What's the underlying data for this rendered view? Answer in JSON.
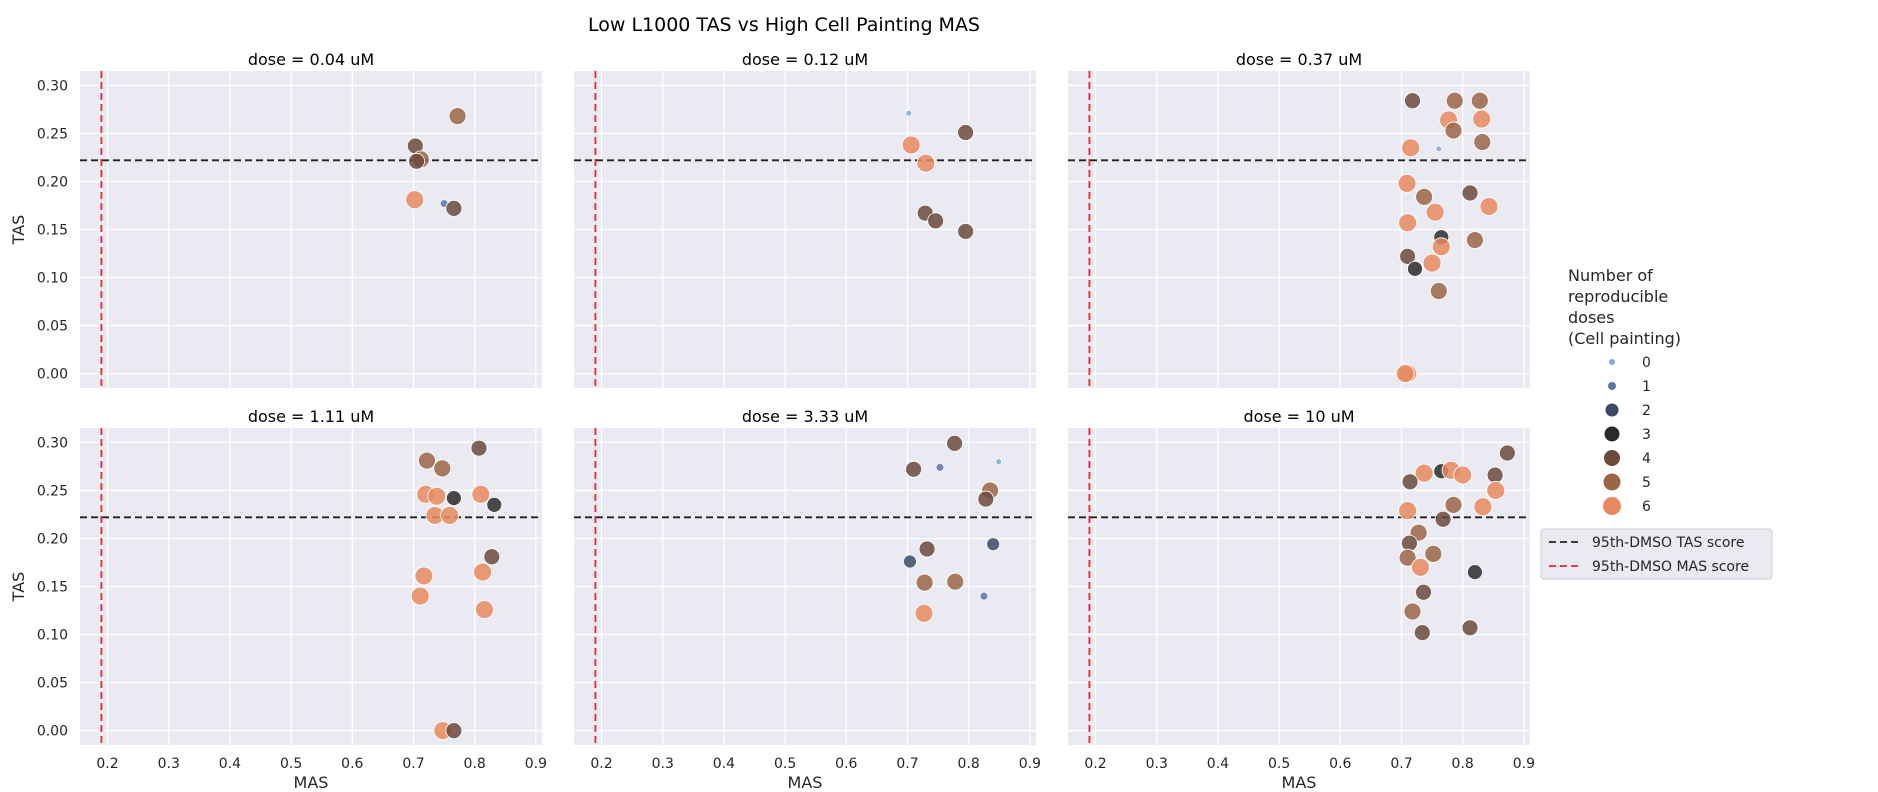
{
  "colors": {
    "panel_bg": "#eaeaf2",
    "grid": "#ffffff",
    "tas_line": "#222222",
    "mas_line": "#e8262b",
    "size_palette": [
      "#7faae0",
      "#5878a8",
      "#3a4a66",
      "#2b2b2b",
      "#6b4a3c",
      "#9b6548",
      "#e8895e"
    ]
  },
  "chart_data": {
    "type": "scatter",
    "title": "Low L1000 TAS vs High Cell Painting MAS",
    "xlabel": "MAS",
    "ylabel": "TAS",
    "xlim": [
      0.155,
      0.91
    ],
    "ylim": [
      -0.015,
      0.315
    ],
    "xticks": [
      "0.2",
      "0.3",
      "0.4",
      "0.5",
      "0.6",
      "0.7",
      "0.8",
      "0.9"
    ],
    "yticks": [
      "0.00",
      "0.05",
      "0.10",
      "0.15",
      "0.20",
      "0.25",
      "0.30"
    ],
    "grid": true,
    "tas_threshold": 0.222,
    "mas_threshold": 0.19,
    "legend": {
      "title": "Number of reproducible doses (Cell painting)",
      "title_lines": [
        "Number of",
        "reproducible",
        "doses",
        "(Cell painting)"
      ],
      "levels": [
        "0",
        "1",
        "2",
        "3",
        "4",
        "5",
        "6"
      ],
      "lines": [
        "95th-DMSO TAS score",
        "95th-DMSO MAS score"
      ],
      "placement": "right"
    },
    "panels": [
      {
        "title": "dose = 0.04 uM",
        "points": [
          {
            "x": 0.772,
            "y": 0.268,
            "n": 5
          },
          {
            "x": 0.703,
            "y": 0.237,
            "n": 4
          },
          {
            "x": 0.712,
            "y": 0.223,
            "n": 5
          },
          {
            "x": 0.705,
            "y": 0.221,
            "n": 4
          },
          {
            "x": 0.702,
            "y": 0.181,
            "n": 6
          },
          {
            "x": 0.75,
            "y": 0.177,
            "n": 1
          },
          {
            "x": 0.766,
            "y": 0.172,
            "n": 4
          }
        ]
      },
      {
        "title": "dose = 0.12 uM",
        "points": [
          {
            "x": 0.702,
            "y": 0.271,
            "n": 0
          },
          {
            "x": 0.795,
            "y": 0.251,
            "n": 4
          },
          {
            "x": 0.706,
            "y": 0.238,
            "n": 6
          },
          {
            "x": 0.73,
            "y": 0.219,
            "n": 6
          },
          {
            "x": 0.729,
            "y": 0.167,
            "n": 4
          },
          {
            "x": 0.746,
            "y": 0.159,
            "n": 4
          },
          {
            "x": 0.795,
            "y": 0.148,
            "n": 4
          }
        ]
      },
      {
        "title": "dose = 0.37 uM",
        "points": [
          {
            "x": 0.718,
            "y": 0.284,
            "n": 4
          },
          {
            "x": 0.787,
            "y": 0.284,
            "n": 5
          },
          {
            "x": 0.828,
            "y": 0.284,
            "n": 5
          },
          {
            "x": 0.777,
            "y": 0.264,
            "n": 6
          },
          {
            "x": 0.831,
            "y": 0.265,
            "n": 6
          },
          {
            "x": 0.785,
            "y": 0.253,
            "n": 5
          },
          {
            "x": 0.832,
            "y": 0.241,
            "n": 5
          },
          {
            "x": 0.715,
            "y": 0.235,
            "n": 6
          },
          {
            "x": 0.761,
            "y": 0.234,
            "n": 0
          },
          {
            "x": 0.709,
            "y": 0.198,
            "n": 6
          },
          {
            "x": 0.812,
            "y": 0.188,
            "n": 4
          },
          {
            "x": 0.737,
            "y": 0.184,
            "n": 5
          },
          {
            "x": 0.843,
            "y": 0.174,
            "n": 6
          },
          {
            "x": 0.755,
            "y": 0.168,
            "n": 6
          },
          {
            "x": 0.71,
            "y": 0.157,
            "n": 6
          },
          {
            "x": 0.765,
            "y": 0.142,
            "n": 3
          },
          {
            "x": 0.82,
            "y": 0.139,
            "n": 5
          },
          {
            "x": 0.765,
            "y": 0.132,
            "n": 6
          },
          {
            "x": 0.71,
            "y": 0.122,
            "n": 4
          },
          {
            "x": 0.75,
            "y": 0.115,
            "n": 6
          },
          {
            "x": 0.722,
            "y": 0.109,
            "n": 3
          },
          {
            "x": 0.761,
            "y": 0.086,
            "n": 5
          },
          {
            "x": 0.71,
            "y": 0.0,
            "n": 6
          },
          {
            "x": 0.706,
            "y": 0.0,
            "n": 6
          }
        ]
      },
      {
        "title": "dose = 1.11 uM",
        "points": [
          {
            "x": 0.807,
            "y": 0.294,
            "n": 4
          },
          {
            "x": 0.722,
            "y": 0.281,
            "n": 5
          },
          {
            "x": 0.747,
            "y": 0.273,
            "n": 5
          },
          {
            "x": 0.72,
            "y": 0.246,
            "n": 6
          },
          {
            "x": 0.738,
            "y": 0.244,
            "n": 6
          },
          {
            "x": 0.81,
            "y": 0.246,
            "n": 6
          },
          {
            "x": 0.766,
            "y": 0.242,
            "n": 3
          },
          {
            "x": 0.832,
            "y": 0.235,
            "n": 3
          },
          {
            "x": 0.735,
            "y": 0.224,
            "n": 6
          },
          {
            "x": 0.759,
            "y": 0.224,
            "n": 6
          },
          {
            "x": 0.828,
            "y": 0.181,
            "n": 4
          },
          {
            "x": 0.717,
            "y": 0.161,
            "n": 6
          },
          {
            "x": 0.813,
            "y": 0.165,
            "n": 6
          },
          {
            "x": 0.711,
            "y": 0.14,
            "n": 6
          },
          {
            "x": 0.816,
            "y": 0.126,
            "n": 6
          },
          {
            "x": 0.748,
            "y": 0.0,
            "n": 6
          },
          {
            "x": 0.766,
            "y": 0.0,
            "n": 4
          }
        ]
      },
      {
        "title": "dose = 3.33 uM",
        "points": [
          {
            "x": 0.777,
            "y": 0.299,
            "n": 4
          },
          {
            "x": 0.849,
            "y": 0.28,
            "n": 0
          },
          {
            "x": 0.71,
            "y": 0.272,
            "n": 4
          },
          {
            "x": 0.753,
            "y": 0.274,
            "n": 1
          },
          {
            "x": 0.835,
            "y": 0.25,
            "n": 5
          },
          {
            "x": 0.828,
            "y": 0.241,
            "n": 4
          },
          {
            "x": 0.84,
            "y": 0.194,
            "n": 2
          },
          {
            "x": 0.732,
            "y": 0.189,
            "n": 4
          },
          {
            "x": 0.704,
            "y": 0.176,
            "n": 2
          },
          {
            "x": 0.728,
            "y": 0.154,
            "n": 5
          },
          {
            "x": 0.778,
            "y": 0.155,
            "n": 5
          },
          {
            "x": 0.825,
            "y": 0.14,
            "n": 1
          },
          {
            "x": 0.727,
            "y": 0.122,
            "n": 6
          }
        ]
      },
      {
        "title": "dose = 10 uM",
        "points": [
          {
            "x": 0.873,
            "y": 0.289,
            "n": 4
          },
          {
            "x": 0.737,
            "y": 0.268,
            "n": 6
          },
          {
            "x": 0.765,
            "y": 0.27,
            "n": 3
          },
          {
            "x": 0.781,
            "y": 0.271,
            "n": 6
          },
          {
            "x": 0.8,
            "y": 0.266,
            "n": 6
          },
          {
            "x": 0.853,
            "y": 0.266,
            "n": 4
          },
          {
            "x": 0.714,
            "y": 0.259,
            "n": 4
          },
          {
            "x": 0.854,
            "y": 0.25,
            "n": 6
          },
          {
            "x": 0.785,
            "y": 0.235,
            "n": 5
          },
          {
            "x": 0.833,
            "y": 0.233,
            "n": 6
          },
          {
            "x": 0.71,
            "y": 0.229,
            "n": 6
          },
          {
            "x": 0.768,
            "y": 0.22,
            "n": 4
          },
          {
            "x": 0.728,
            "y": 0.206,
            "n": 5
          },
          {
            "x": 0.713,
            "y": 0.195,
            "n": 4
          },
          {
            "x": 0.752,
            "y": 0.184,
            "n": 5
          },
          {
            "x": 0.71,
            "y": 0.18,
            "n": 5
          },
          {
            "x": 0.731,
            "y": 0.17,
            "n": 6
          },
          {
            "x": 0.82,
            "y": 0.165,
            "n": 3
          },
          {
            "x": 0.736,
            "y": 0.144,
            "n": 4
          },
          {
            "x": 0.718,
            "y": 0.124,
            "n": 5
          },
          {
            "x": 0.812,
            "y": 0.107,
            "n": 4
          },
          {
            "x": 0.734,
            "y": 0.102,
            "n": 4
          }
        ]
      }
    ]
  }
}
